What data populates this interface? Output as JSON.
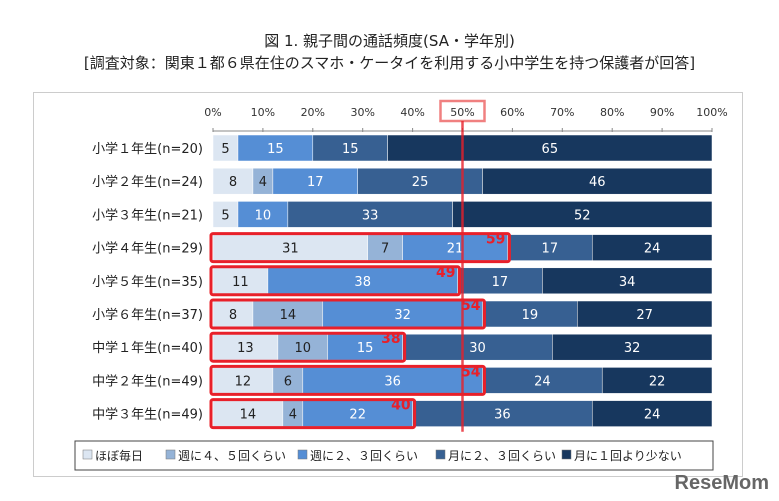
{
  "chart_data": {
    "type": "bar",
    "orientation": "horizontal-stacked-100",
    "title": "図 1. 親子間の通話頻度(SA・学年別)",
    "subtitle": "[調査対象：関東１都６県在住のスマホ・ケータイを利用する小中学生を持つ保護者が回答]",
    "xlim": [
      0,
      100
    ],
    "xticks": [
      "0%",
      "10%",
      "20%",
      "30%",
      "40%",
      "50%",
      "60%",
      "70%",
      "80%",
      "90%",
      "100%"
    ],
    "highlight_tick": "50%",
    "categories": [
      "小学１年生(n=20)",
      "小学２年生(n=24)",
      "小学３年生(n=21)",
      "小学４年生(n=29)",
      "小学５年生(n=35)",
      "小学６年生(n=37)",
      "中学１年生(n=40)",
      "中学２年生(n=49)",
      "中学３年生(n=49)"
    ],
    "series": [
      {
        "name": "ほぼ毎日",
        "color": "#dce6f2",
        "values": [
          5,
          8,
          5,
          31,
          11,
          8,
          13,
          12,
          14
        ]
      },
      {
        "name": "週に４、５回くらい",
        "color": "#95b3d7",
        "values": [
          0,
          4,
          0,
          7,
          0,
          14,
          10,
          6,
          4
        ]
      },
      {
        "name": "週に２、３回くらい",
        "color": "#558ed5",
        "values": [
          15,
          17,
          10,
          21,
          38,
          32,
          15,
          36,
          22
        ]
      },
      {
        "name": "月に２、３回くらい",
        "color": "#376092",
        "values": [
          15,
          25,
          33,
          17,
          17,
          19,
          30,
          24,
          36
        ]
      },
      {
        "name": "月に１回より少ない",
        "color": "#17375e",
        "values": [
          65,
          46,
          52,
          24,
          34,
          27,
          32,
          22,
          24
        ]
      }
    ],
    "cumulative_highlights": [
      null,
      null,
      null,
      59,
      49,
      54,
      38,
      54,
      40
    ],
    "highlight_color": "#e8202a"
  },
  "logo": "ReseMom"
}
